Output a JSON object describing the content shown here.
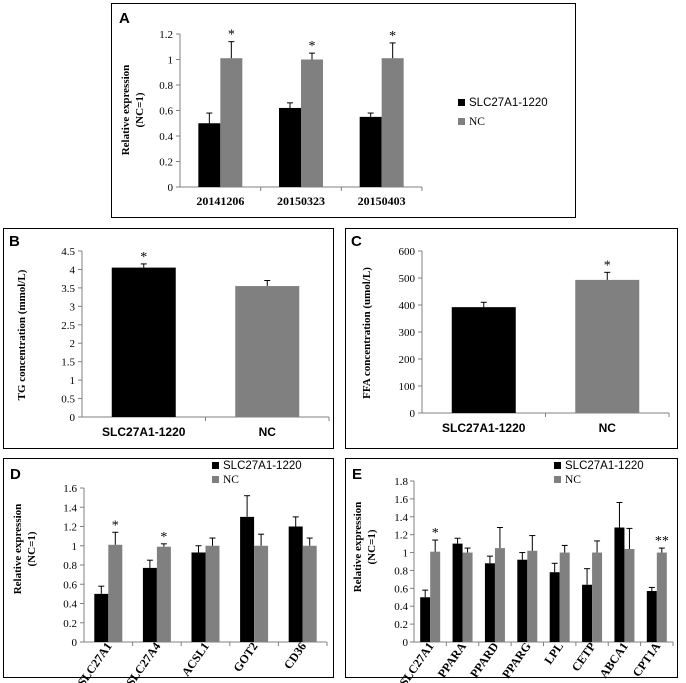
{
  "colors": {
    "series_black": "#000000",
    "series_gray": "#808080",
    "axis": "#808080",
    "errbar": "#000000"
  },
  "chart_data": [
    {
      "id": "A",
      "panel_label": "A",
      "type": "bar",
      "categories": [
        "20141206",
        "20150323",
        "20150403"
      ],
      "series": [
        {
          "name": "SLC27A1-1220",
          "values": [
            0.5,
            0.62,
            0.55
          ],
          "errors": [
            0.08,
            0.04,
            0.03
          ]
        },
        {
          "name": "NC",
          "values": [
            1.01,
            1.0,
            1.01
          ],
          "errors": [
            0.13,
            0.05,
            0.12
          ]
        }
      ],
      "significance": [
        "*",
        "*",
        "*"
      ],
      "ylabel_lines": [
        "Relative expression",
        "(NC=1)"
      ],
      "ylim": [
        0,
        1.2
      ],
      "yticks": [
        "0",
        "0.2",
        "0.4",
        "0.6",
        "0.8",
        "1",
        "1.2"
      ],
      "legend_position": "right"
    },
    {
      "id": "B",
      "panel_label": "B",
      "type": "bar",
      "categories": [
        "SLC27A1-1220",
        "NC"
      ],
      "series": [
        {
          "name": "TG",
          "values": [
            4.05,
            3.55
          ],
          "errors": [
            0.1,
            0.15
          ]
        }
      ],
      "bar_colors": [
        "#000000",
        "#808080"
      ],
      "significance": [
        "*",
        ""
      ],
      "ylabel_lines": [
        "TG concentration (mmol/L)"
      ],
      "ylim": [
        0,
        4.5
      ],
      "yticks": [
        "0",
        "0.5",
        "1",
        "1.5",
        "2",
        "2.5",
        "3",
        "3.5",
        "4",
        "4.5"
      ]
    },
    {
      "id": "C",
      "panel_label": "C",
      "type": "bar",
      "categories": [
        "SLC27A1-1220",
        "NC"
      ],
      "series": [
        {
          "name": "FFA",
          "values": [
            392,
            493
          ],
          "errors": [
            18,
            28
          ]
        }
      ],
      "bar_colors": [
        "#000000",
        "#808080"
      ],
      "significance": [
        "",
        "*"
      ],
      "ylabel_lines": [
        "FFA concentration (umol/L)"
      ],
      "ylim": [
        0,
        600
      ],
      "yticks": [
        "0",
        "100",
        "200",
        "300",
        "400",
        "500",
        "600"
      ]
    },
    {
      "id": "D",
      "panel_label": "D",
      "type": "bar",
      "categories": [
        "SLC27A1",
        "SLC27A4",
        "ACSL1",
        "GOT2",
        "CD36"
      ],
      "series": [
        {
          "name": "SLC27A1-1220",
          "values": [
            0.5,
            0.77,
            0.93,
            1.3,
            1.2
          ],
          "errors": [
            0.08,
            0.08,
            0.07,
            0.22,
            0.1
          ]
        },
        {
          "name": "NC",
          "values": [
            1.01,
            0.99,
            1.0,
            1.0,
            1.0
          ],
          "errors": [
            0.13,
            0.03,
            0.08,
            0.12,
            0.08
          ]
        }
      ],
      "significance": [
        "*",
        "*",
        "",
        "",
        ""
      ],
      "ylabel_lines": [
        "Relative expression",
        "(NC=1)"
      ],
      "ylim": [
        0,
        1.6
      ],
      "yticks": [
        "0",
        "0.2",
        "0.4",
        "0.6",
        "0.8",
        "1",
        "1.2",
        "1.4",
        "1.6"
      ],
      "legend_position": "top"
    },
    {
      "id": "E",
      "panel_label": "E",
      "type": "bar",
      "categories": [
        "SLC27A1",
        "PPARA",
        "PPARD",
        "PPARG",
        "LPL",
        "CETP",
        "ABCA1",
        "CPT1A"
      ],
      "series": [
        {
          "name": "SLC27A1-1220",
          "values": [
            0.5,
            1.1,
            0.88,
            0.92,
            0.78,
            0.64,
            1.28,
            0.57
          ],
          "errors": [
            0.08,
            0.06,
            0.08,
            0.08,
            0.1,
            0.18,
            0.28,
            0.04
          ]
        },
        {
          "name": "NC",
          "values": [
            1.01,
            1.0,
            1.05,
            1.02,
            1.0,
            1.0,
            1.04,
            1.0
          ],
          "errors": [
            0.13,
            0.05,
            0.23,
            0.17,
            0.08,
            0.13,
            0.23,
            0.05
          ]
        }
      ],
      "significance": [
        "*",
        "",
        "",
        "",
        "",
        "",
        "",
        "**"
      ],
      "ylabel_lines": [
        "Relative expression",
        "(NC=1)"
      ],
      "ylim": [
        0,
        1.8
      ],
      "yticks": [
        "0",
        "0.2",
        "0.4",
        "0.6",
        "0.8",
        "1",
        "1.2",
        "1.4",
        "1.6",
        "1.8"
      ],
      "legend_position": "top"
    }
  ]
}
